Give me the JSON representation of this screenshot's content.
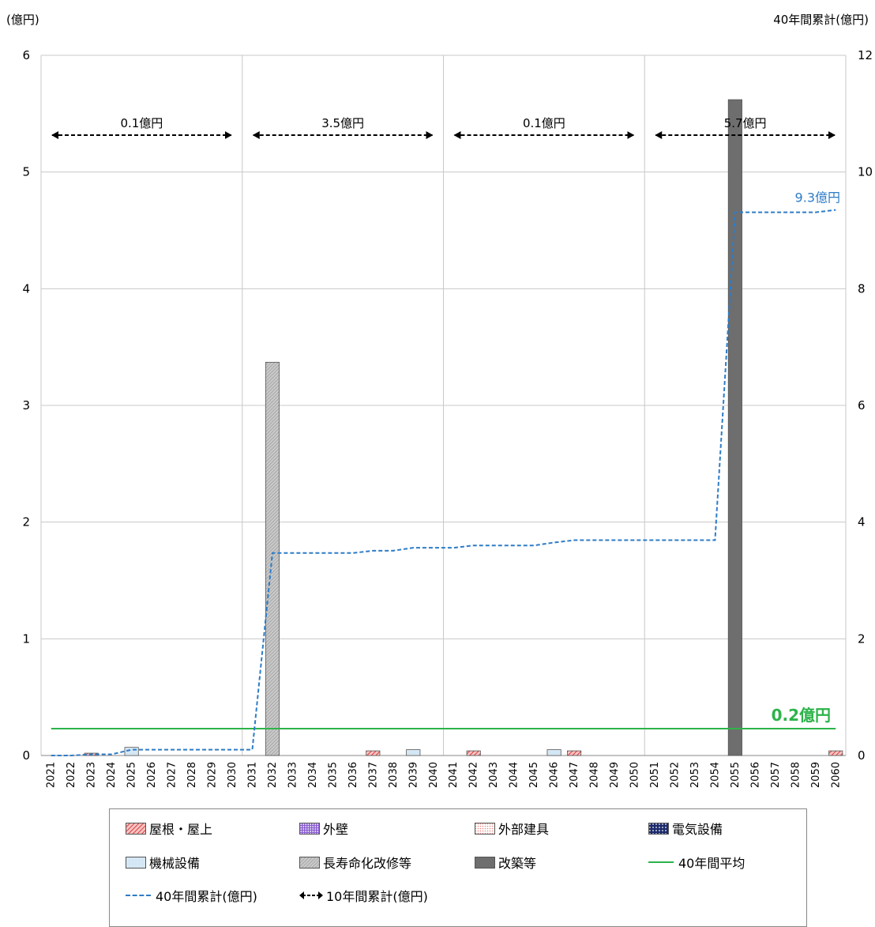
{
  "left_axis_unit": "(億円)",
  "right_axis_unit": "40年間累計(億円)",
  "colors": {
    "roof": "#e03c3c",
    "wall": "#8b5fd1",
    "exterior": "#e8837f",
    "electric": "#1b2a6b",
    "mechanical": "#d6e8f5",
    "longevity": "#b8b8b8",
    "rebuild": "#6e6e6e",
    "average": "#2db34a",
    "cumulative": "#2d7cc7"
  },
  "chart_data": {
    "type": "bar",
    "ylim_left": [
      0,
      6
    ],
    "ylim_right": [
      0,
      12
    ],
    "yticks_left": [
      "0",
      "1",
      "2",
      "3",
      "4",
      "5",
      "6"
    ],
    "yticks_right": [
      "0",
      "2",
      "4",
      "6",
      "8",
      "10",
      "12"
    ],
    "categories": [
      "2021",
      "2022",
      "2023",
      "2024",
      "2025",
      "2026",
      "2027",
      "2028",
      "2029",
      "2030",
      "2031",
      "2032",
      "2033",
      "2034",
      "2035",
      "2036",
      "2037",
      "2038",
      "2039",
      "2040",
      "2041",
      "2042",
      "2043",
      "2044",
      "2045",
      "2046",
      "2047",
      "2048",
      "2049",
      "2050",
      "2051",
      "2052",
      "2053",
      "2054",
      "2055",
      "2056",
      "2057",
      "2058",
      "2059",
      "2060"
    ],
    "series": [
      {
        "name": "屋根・屋上",
        "key": "roof",
        "values": [
          0,
          0,
          0.02,
          0,
          0,
          0,
          0,
          0,
          0,
          0,
          0,
          0,
          0,
          0,
          0,
          0,
          0.04,
          0,
          0,
          0,
          0,
          0.04,
          0,
          0,
          0,
          0,
          0.04,
          0,
          0,
          0,
          0,
          0,
          0,
          0,
          0,
          0,
          0,
          0,
          0,
          0.04
        ]
      },
      {
        "name": "外壁",
        "key": "wall",
        "values": [
          0,
          0,
          0,
          0,
          0,
          0,
          0,
          0,
          0,
          0,
          0,
          0,
          0,
          0,
          0,
          0,
          0,
          0,
          0,
          0,
          0,
          0,
          0,
          0,
          0,
          0,
          0,
          0,
          0,
          0,
          0,
          0,
          0,
          0,
          0,
          0,
          0,
          0,
          0,
          0
        ]
      },
      {
        "name": "外部建具",
        "key": "exterior",
        "values": [
          0,
          0,
          0,
          0,
          0,
          0,
          0,
          0,
          0,
          0,
          0,
          0,
          0,
          0,
          0,
          0,
          0,
          0,
          0,
          0,
          0,
          0,
          0,
          0,
          0,
          0,
          0,
          0,
          0,
          0,
          0,
          0,
          0,
          0,
          0,
          0,
          0,
          0,
          0,
          0
        ]
      },
      {
        "name": "電気設備",
        "key": "electric",
        "values": [
          0,
          0,
          0,
          0,
          0,
          0,
          0,
          0,
          0,
          0,
          0,
          0,
          0,
          0,
          0,
          0,
          0,
          0,
          0,
          0,
          0,
          0,
          0,
          0,
          0,
          0,
          0,
          0,
          0,
          0,
          0,
          0,
          0,
          0,
          0,
          0,
          0,
          0,
          0,
          0
        ]
      },
      {
        "name": "機械設備",
        "key": "mechanical",
        "values": [
          0,
          0,
          0,
          0,
          0.07,
          0,
          0,
          0,
          0,
          0,
          0,
          0,
          0,
          0,
          0,
          0,
          0,
          0,
          0.05,
          0,
          0,
          0,
          0,
          0,
          0,
          0.05,
          0,
          0,
          0,
          0,
          0,
          0,
          0,
          0,
          0,
          0,
          0,
          0,
          0,
          0
        ]
      },
      {
        "name": "長寿命化改修等",
        "key": "longevity",
        "values": [
          0,
          0,
          0,
          0,
          0,
          0,
          0,
          0,
          0,
          0,
          0,
          3.37,
          0,
          0,
          0,
          0,
          0,
          0,
          0,
          0,
          0,
          0,
          0,
          0,
          0,
          0,
          0,
          0,
          0,
          0,
          0,
          0,
          0,
          0,
          0,
          0,
          0,
          0,
          0,
          0
        ]
      },
      {
        "name": "改築等",
        "key": "rebuild",
        "values": [
          0,
          0,
          0,
          0,
          0,
          0,
          0,
          0,
          0,
          0,
          0,
          0,
          0,
          0,
          0,
          0,
          0,
          0,
          0,
          0,
          0,
          0,
          0,
          0,
          0,
          0,
          0,
          0,
          0,
          0,
          0,
          0,
          0,
          0,
          5.62,
          0,
          0,
          0,
          0,
          0
        ]
      }
    ],
    "average": {
      "name": "40年間平均",
      "value": 0.23,
      "label": "0.2億円"
    },
    "cumulative": {
      "name": "40年間累計(億円)",
      "values": [
        0,
        0,
        0.02,
        0.02,
        0.1,
        0.1,
        0.1,
        0.1,
        0.1,
        0.1,
        0.1,
        3.47,
        3.47,
        3.47,
        3.47,
        3.47,
        3.51,
        3.51,
        3.56,
        3.56,
        3.56,
        3.6,
        3.6,
        3.6,
        3.6,
        3.65,
        3.69,
        3.69,
        3.69,
        3.69,
        3.69,
        3.69,
        3.69,
        3.69,
        9.31,
        9.31,
        9.31,
        9.31,
        9.31,
        9.35
      ],
      "end_label": "9.3億円"
    },
    "decade_name": "10年間累計(億円)",
    "decade_totals": [
      {
        "label": "0.1億円",
        "from": 0,
        "to": 10
      },
      {
        "label": "3.5億円",
        "from": 10,
        "to": 20
      },
      {
        "label": "0.1億円",
        "from": 20,
        "to": 30
      },
      {
        "label": "5.7億円",
        "from": 30,
        "to": 40
      }
    ]
  },
  "legend": [
    {
      "key": "roof",
      "label": "屋根・屋上"
    },
    {
      "key": "wall",
      "label": "外壁"
    },
    {
      "key": "exterior",
      "label": "外部建具"
    },
    {
      "key": "electric",
      "label": "電気設備"
    },
    {
      "key": "mechanical",
      "label": "機械設備"
    },
    {
      "key": "longevity",
      "label": "長寿命化改修等"
    },
    {
      "key": "rebuild",
      "label": "改築等"
    },
    {
      "key": "average",
      "label": "40年間平均"
    },
    {
      "key": "cumulative",
      "label": "40年間累計(億円)"
    },
    {
      "key": "decade",
      "label": "10年間累計(億円)"
    }
  ]
}
